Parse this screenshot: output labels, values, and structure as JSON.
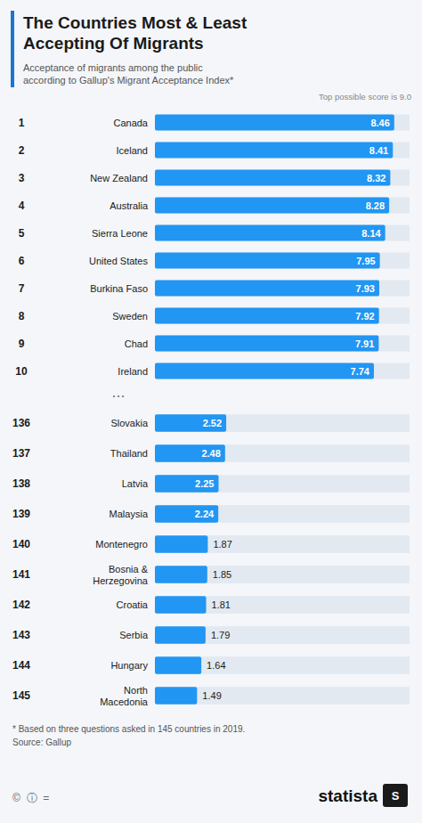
{
  "chart_data": [
    {
      "type": "bar",
      "orientation": "horizontal",
      "title": "The Countries Most & Least\nAccepting Of Migrants",
      "subtitle": "Acceptance of migrants among the public\naccording to Gallup's Migrant Acceptance Index*",
      "annotations": [
        "Top possible score is 9.0"
      ],
      "ranks": [
        "1",
        "2",
        "3",
        "4",
        "5",
        "6",
        "7",
        "8",
        "9",
        "10"
      ],
      "categories": [
        "Canada",
        "Iceland",
        "New Zealand",
        "Australia",
        "Sierra Leone",
        "United States",
        "Burkina Faso",
        "Sweden",
        "Chad",
        "Ireland"
      ],
      "values": [
        8.46,
        8.41,
        8.32,
        8.28,
        8.14,
        7.95,
        7.93,
        7.92,
        7.91,
        7.74
      ],
      "color": "#2196F3",
      "xlim": [
        0,
        9.0
      ],
      "tick_labels": false,
      "data_labels": true,
      "grid": false
    },
    {
      "type": "bar",
      "orientation": "horizontal",
      "annotations": [
        "...",
        "* Based on three questions asked in 145 countries in 2019.",
        "Source: Gallup",
        "statista",
        "S",
        "©  ⓘ  ="
      ],
      "ranks": [
        "136",
        "137",
        "138",
        "139",
        "140",
        "141",
        "142",
        "143",
        "144",
        "145"
      ],
      "categories": [
        "Slovakia",
        "Thailand",
        "Latvia",
        "Malaysia",
        "Montenegro",
        "Bosnia &\nHerzegovina",
        "Croatia",
        "Serbia",
        "Hungary",
        "North\nMacedonia"
      ],
      "values": [
        2.52,
        2.48,
        2.25,
        2.24,
        1.87,
        1.85,
        1.81,
        1.79,
        1.64,
        1.49
      ],
      "color": "#2196F3",
      "xlim": [
        0,
        9.0
      ],
      "tick_labels": false,
      "data_labels": true,
      "grid": false
    }
  ]
}
